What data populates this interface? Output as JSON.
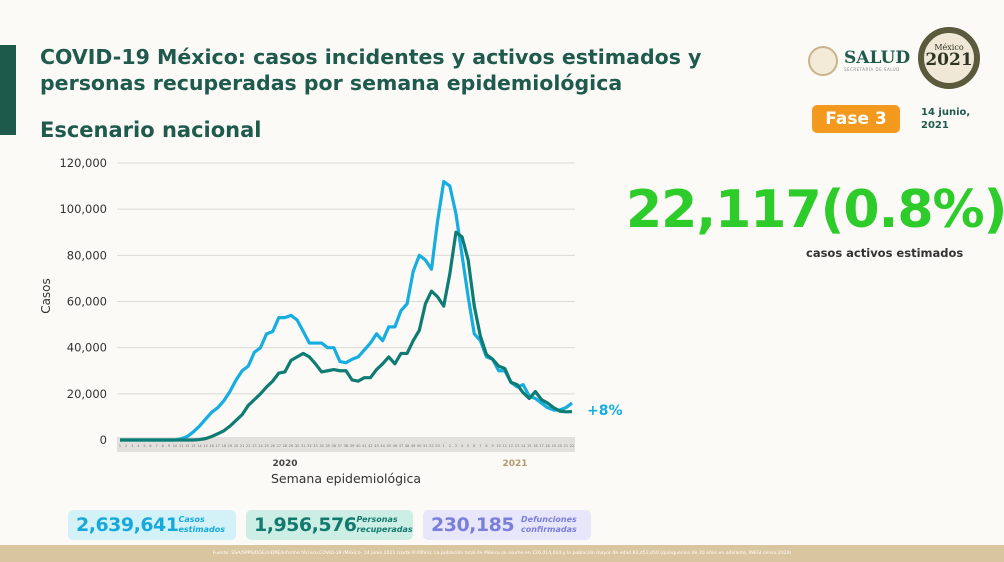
{
  "header": {
    "title": "COVID-19 México: casos incidentes y activos estimados y personas recuperadas por semana epidemiológica",
    "subtitle": "Escenario nacional",
    "logo_text": "SALUD",
    "logo_subtext": "SECRETARÍA DE SALUD",
    "logo2021_top": "México",
    "logo2021_year": "2021",
    "phase": "Fase 3",
    "date": "14 junio, 2021"
  },
  "highlight": {
    "value": "22,117(0.8%)",
    "label": "casos activos estimados",
    "change": "+8%"
  },
  "colors": {
    "estimated": "#16ade0",
    "recovered": "#0f7c73",
    "highlight": "#2dcc2a",
    "title": "#1f5a4d",
    "phase": "#f39a1e"
  },
  "chart_data": {
    "type": "line",
    "xlabel": "Semana epidemiológica",
    "ylabel": "Casos",
    "ylim": [
      0,
      120000
    ],
    "yticks": [
      "0",
      "20,000",
      "40,000",
      "60,000",
      "80,000",
      "100,000",
      "120,000"
    ],
    "year_labels": [
      "2020",
      "2021"
    ],
    "weeks_2020": 53,
    "weeks_2021": 22,
    "grid": true,
    "series": [
      {
        "key": "estimated",
        "values": [
          0,
          0,
          0,
          0,
          0,
          0,
          0,
          0,
          0,
          0,
          500,
          1500,
          3500,
          6000,
          9000,
          12000,
          14000,
          17000,
          21000,
          26000,
          30000,
          32000,
          38000,
          40000,
          46000,
          47000,
          53000,
          53000,
          54000,
          52000,
          47000,
          42000,
          42000,
          42000,
          40000,
          40000,
          34000,
          33500,
          35000,
          36000,
          39000,
          42000,
          46000,
          43000,
          49000,
          49000,
          56000,
          59000,
          73000,
          80000,
          78000,
          74000,
          95000,
          112000,
          110000,
          98000,
          80000,
          62000,
          46000,
          43000,
          36000,
          35000,
          30000,
          30000,
          25000,
          23000,
          24000,
          19000,
          18000,
          16000,
          14000,
          13000,
          13000,
          14000,
          16000
        ]
      },
      {
        "key": "recovered",
        "values": [
          0,
          0,
          0,
          0,
          0,
          0,
          0,
          0,
          0,
          0,
          0,
          0,
          0,
          200,
          600,
          1500,
          2700,
          4000,
          6000,
          8500,
          11000,
          15000,
          17500,
          20000,
          23000,
          25500,
          29000,
          29500,
          34500,
          36000,
          37500,
          36000,
          33000,
          29500,
          30000,
          30500,
          30000,
          30000,
          26000,
          25500,
          27000,
          27000,
          30500,
          33000,
          36000,
          33000,
          37500,
          37500,
          43000,
          47500,
          59000,
          64500,
          62000,
          58000,
          72000,
          90000,
          88000,
          78000,
          58000,
          45000,
          37000,
          35000,
          32000,
          31000,
          25000,
          24000,
          20500,
          18000,
          21000,
          17500,
          16000,
          14000,
          12500,
          12200,
          12300
        ]
      }
    ]
  },
  "stats": [
    {
      "value": "2,639,641",
      "label": "Casos estimados",
      "color": "#17a9dc",
      "bg": "#d3f2f8"
    },
    {
      "value": "1,956,576",
      "label": "Personas recuperadas",
      "color": "#137a6f",
      "bg": "#cdeee5"
    },
    {
      "value": "230,185",
      "label": "Defunciones confirmadas",
      "color": "#7b7fdc",
      "bg": "#e7e6fa"
    }
  ],
  "footer": "Fuente: SSA/SPPS/DGE/InDRE/Informe técnico.COVID-19 /México- 14 junio 2021 (corte 9:00hrs). La población total de México se asume en 126,014,024 y la población mayor de edad 83,452,050 (quinquenios de 20 años en adelante, INEGI censo 2020)"
}
